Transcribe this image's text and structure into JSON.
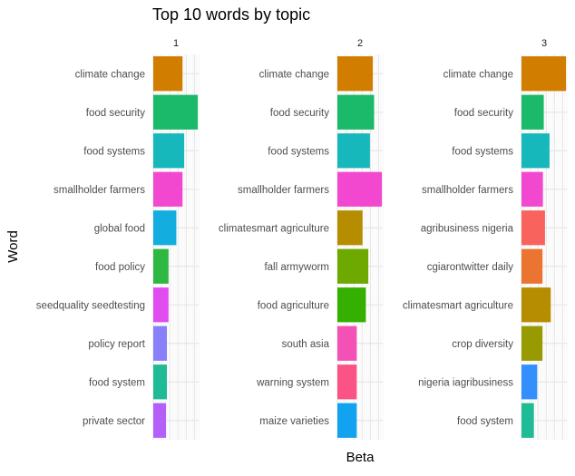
{
  "chart_data": {
    "type": "bar",
    "orientation": "horizontal",
    "title": "Top 10 words by topic",
    "xlabel": "Beta",
    "ylabel": "Word",
    "grid": true,
    "xlim": [
      0,
      0.055
    ],
    "facets": [
      {
        "name": "1",
        "categories": [
          "climate change",
          "food security",
          "food systems",
          "smallholder farmers",
          "global food",
          "food policy",
          "seedquality seedtesting",
          "policy report",
          "food system",
          "private sector"
        ],
        "values": [
          0.0355,
          0.054,
          0.0375,
          0.0355,
          0.028,
          0.0185,
          0.0185,
          0.0165,
          0.0165,
          0.0155
        ],
        "colors": [
          "#D07D00",
          "#1BB96A",
          "#17B8BC",
          "#F148CF",
          "#14ADE0",
          "#2DB842",
          "#E14CF0",
          "#8A7FFA",
          "#1EBB94",
          "#B460F8"
        ]
      },
      {
        "name": "2",
        "categories": [
          "climate change",
          "food security",
          "food systems",
          "smallholder farmers",
          "climatesmart agriculture",
          "fall armyworm",
          "food agriculture",
          "south asia",
          "warning system",
          "maize varieties"
        ],
        "values": [
          0.043,
          0.0445,
          0.0395,
          0.054,
          0.0305,
          0.0375,
          0.0345,
          0.0235,
          0.0235,
          0.0235
        ],
        "colors": [
          "#D07D00",
          "#1BB96A",
          "#17B8BC",
          "#F148CF",
          "#B68C00",
          "#6DA900",
          "#35B000",
          "#F451B6",
          "#FB5385",
          "#11A2F0"
        ]
      },
      {
        "name": "3",
        "categories": [
          "climate change",
          "food security",
          "food systems",
          "smallholder farmers",
          "agribusiness nigeria",
          "cgiarontwitter daily",
          "climatesmart agriculture",
          "crop diversity",
          "nigeria iagribusiness",
          "food system"
        ],
        "values": [
          0.054,
          0.027,
          0.034,
          0.026,
          0.0285,
          0.0255,
          0.0355,
          0.0255,
          0.019,
          0.015
        ],
        "colors": [
          "#D07D00",
          "#1BB96A",
          "#17B8BC",
          "#F148CF",
          "#F8635D",
          "#EB7430",
          "#B68C00",
          "#979A00",
          "#328FFC",
          "#1EBB94"
        ]
      }
    ]
  }
}
